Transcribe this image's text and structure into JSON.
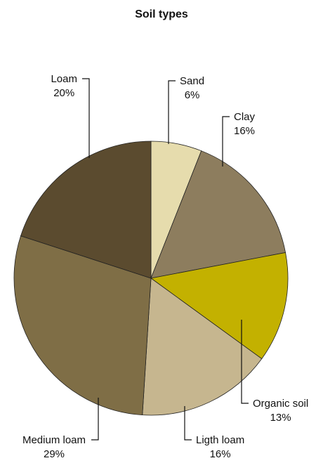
{
  "chart_data": {
    "type": "pie",
    "title": "Soil types",
    "slices": [
      {
        "label": "Sand",
        "value": 6,
        "value_label": "6%",
        "color": "#e6dcad"
      },
      {
        "label": "Clay",
        "value": 16,
        "value_label": "16%",
        "color": "#8d7d5e"
      },
      {
        "label": "Organic soil",
        "value": 13,
        "value_label": "13%",
        "color": "#c3b100"
      },
      {
        "label": "Ligth loam",
        "value": 16,
        "value_label": "16%",
        "color": "#c6b68f"
      },
      {
        "label": "Medium loam",
        "value": 29,
        "value_label": "29%",
        "color": "#7f6e46"
      },
      {
        "label": "Loam",
        "value": 20,
        "value_label": "20%",
        "color": "#5b4b2f"
      }
    ]
  }
}
